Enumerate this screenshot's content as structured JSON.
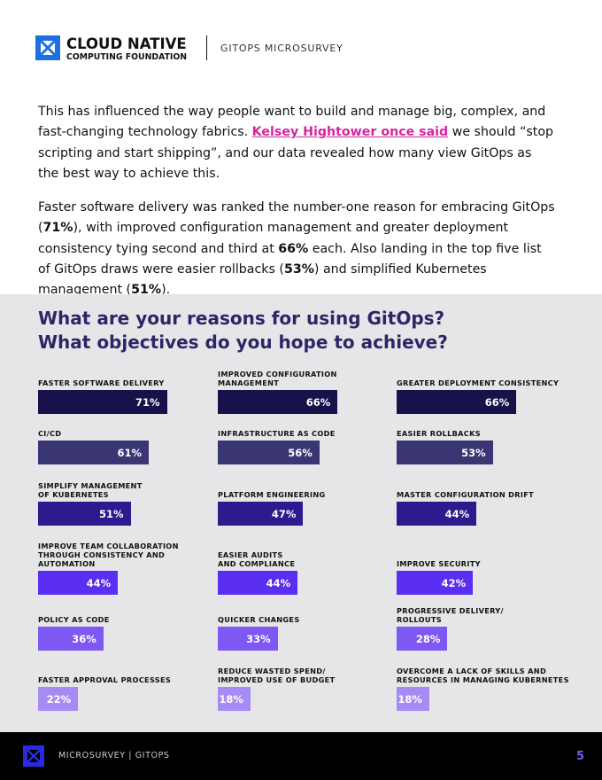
{
  "header": {
    "logo_line1": "CLOUD NATIVE",
    "logo_line2": "COMPUTING FOUNDATION",
    "section": "GITOPS MICROSURVEY"
  },
  "paragraphs": [
    [
      "This has influenced the way people want to build and manage big, complex, and fast-changing technology fabrics. ",
      "Kelsey Hightower once said",
      " we should “stop scripting and start shipping”, and our data revealed how many view GitOps as the best way to achieve this."
    ],
    [
      "Faster software delivery was ranked the number-one reason for embracing GitOps (",
      "71%",
      "), with improved configuration management and greater deployment consistency tying second and third at ",
      "66%",
      " each. Also landing in the top five list of GitOps draws were easier rollbacks (",
      "53%",
      ") and simplified Kubernetes management (",
      "51%",
      ")."
    ]
  ],
  "chart_data": {
    "type": "bar",
    "orientation": "horizontal",
    "title": "What are your reasons for using GitOps?\nWhat objectives do you hope to achieve?",
    "categories": [
      "FASTER SOFTWARE DELIVERY",
      "IMPROVED CONFIGURATION\nMANAGEMENT",
      "GREATER DEPLOYMENT CONSISTENCY",
      "CI/CD",
      "INFRASTRUCTURE AS CODE",
      "EASIER ROLLBACKS",
      "SIMPLIFY MANAGEMENT\nOF KUBERNETES",
      "PLATFORM ENGINEERING",
      "MASTER CONFIGURATION DRIFT",
      "IMPROVE TEAM COLLABORATION\nTHROUGH CONSISTENCY AND\nAUTOMATION",
      "EASIER AUDITS\nAND COMPLIANCE",
      "IMPROVE SECURITY",
      "POLICY AS CODE",
      "QUICKER CHANGES",
      "PROGRESSIVE DELIVERY/\nROLLOUTS",
      "FASTER APPROVAL PROCESSES",
      "REDUCE WASTED SPEND/\nIMPROVED USE OF BUDGET",
      "OVERCOME A LACK OF SKILLS AND\nRESOURCES IN MANAGING KUBERNETES"
    ],
    "values": [
      71,
      66,
      66,
      61,
      56,
      53,
      51,
      47,
      44,
      44,
      44,
      42,
      36,
      33,
      28,
      22,
      18,
      18
    ],
    "value_labels": [
      "71%",
      "66%",
      "66%",
      "61%",
      "56%",
      "53%",
      "51%",
      "47%",
      "44%",
      "44%",
      "44%",
      "42%",
      "36%",
      "33%",
      "28%",
      "22%",
      "18%",
      "18%"
    ],
    "colors": [
      "#17124a",
      "#17124a",
      "#17124a",
      "#3a3573",
      "#3a3573",
      "#3a3573",
      "#2d1a8e",
      "#2d1a8e",
      "#2d1a8e",
      "#5a2ff2",
      "#5a2ff2",
      "#5a2ff2",
      "#7d58f2",
      "#7d58f2",
      "#7d58f2",
      "#a68bf4",
      "#a68bf4",
      "#a68bf4"
    ]
  },
  "footer": {
    "text": "MICROSURVEY | GITOPS",
    "page": "5"
  }
}
